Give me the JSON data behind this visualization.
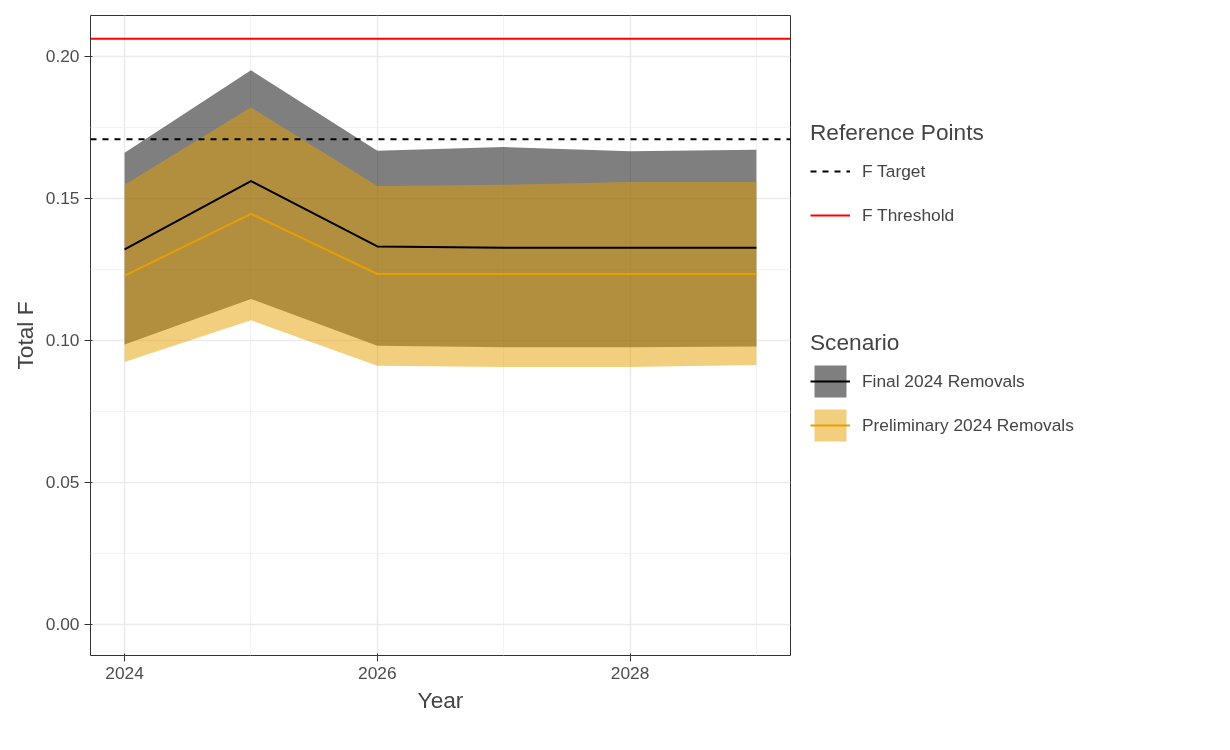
{
  "chart_data": {
    "type": "line",
    "xlabel": "Year",
    "ylabel": "Total F",
    "x": [
      2024,
      2025,
      2026,
      2027,
      2028,
      2029
    ],
    "series": [
      {
        "name": "Final 2024 Removals",
        "color": "#000000",
        "values": [
          0.132,
          0.156,
          0.133,
          0.1325,
          0.1325,
          0.1325
        ],
        "lower": [
          0.0985,
          0.1145,
          0.098,
          0.0975,
          0.0975,
          0.0978
        ],
        "upper": [
          0.166,
          0.195,
          0.1667,
          0.168,
          0.1665,
          0.167
        ]
      },
      {
        "name": "Preliminary 2024 Removals",
        "color": "#e69f00",
        "values": [
          0.1227,
          0.1445,
          0.1233,
          0.1233,
          0.1233,
          0.1233
        ],
        "lower": [
          0.0923,
          0.107,
          0.091,
          0.0906,
          0.0906,
          0.0913
        ],
        "upper": [
          0.1547,
          0.182,
          0.1543,
          0.1547,
          0.1557,
          0.1557
        ]
      }
    ],
    "legend_title": "Scenario",
    "annotations": [
      "Reference Points"
    ],
    "ref_lines": [
      {
        "axis": "y",
        "value": 0.1707,
        "label": "F Target",
        "color": "#000000",
        "line_style": "dashed"
      },
      {
        "axis": "y",
        "value": 0.2061,
        "label": "F Threshold",
        "color": "#ff0000",
        "line_style": "solid"
      }
    ],
    "xlim": [
      2023.73,
      2029.27
    ],
    "ylim": [
      -0.011,
      0.2143
    ],
    "xticks": [
      2024,
      2026,
      2028
    ],
    "yticks": [
      {
        "value": 0,
        "label": "0.00"
      },
      {
        "value": 0.05,
        "label": "0.05"
      },
      {
        "value": 0.1,
        "label": "0.10"
      },
      {
        "value": 0.15,
        "label": "0.15"
      },
      {
        "value": 0.2,
        "label": "0.20"
      }
    ],
    "grid": true,
    "legend": "right",
    "marker": "none",
    "line_style": "solid"
  }
}
